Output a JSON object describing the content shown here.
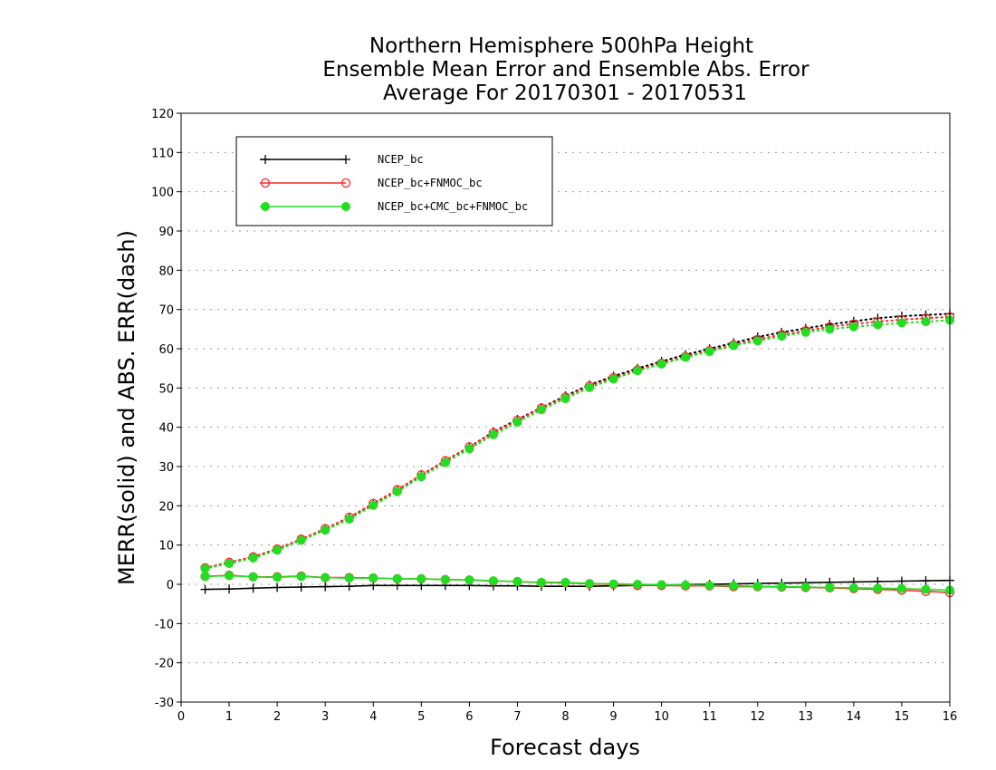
{
  "chart_data": {
    "type": "line",
    "title": [
      "Northern Hemisphere 500hPa Height",
      "Ensemble Mean Error and Ensemble Abs. Error",
      "Average For 20170301 - 20170531"
    ],
    "xlabel": "Forecast days",
    "ylabel": "MERR(solid) and ABS. ERR(dash)",
    "xlim": [
      0,
      16
    ],
    "ylim": [
      -30,
      120
    ],
    "xticks": [
      0,
      1,
      2,
      3,
      4,
      5,
      6,
      7,
      8,
      9,
      10,
      11,
      12,
      13,
      14,
      15,
      16
    ],
    "yticks": [
      -30,
      -20,
      -10,
      0,
      10,
      20,
      30,
      40,
      50,
      60,
      70,
      80,
      90,
      100,
      110,
      120
    ],
    "grid": "horizontal-dotted",
    "legend_placement": "top-left",
    "x": [
      0.5,
      1,
      1.5,
      2,
      2.5,
      3,
      3.5,
      4,
      4.5,
      5,
      5.5,
      6,
      6.5,
      7,
      7.5,
      8,
      8.5,
      9,
      9.5,
      10,
      10.5,
      11,
      11.5,
      12,
      12.5,
      13,
      13.5,
      14,
      14.5,
      15,
      15.5,
      16
    ],
    "series": [
      {
        "name": "NCEP_bc",
        "color": "#000000",
        "marker": "plus",
        "merr": [
          -1.3,
          -1.2,
          -1.0,
          -0.8,
          -0.7,
          -0.6,
          -0.5,
          -0.3,
          -0.3,
          -0.3,
          -0.3,
          -0.3,
          -0.4,
          -0.4,
          -0.5,
          -0.5,
          -0.5,
          -0.4,
          -0.3,
          -0.2,
          -0.1,
          0.0,
          0.1,
          0.2,
          0.3,
          0.4,
          0.5,
          0.6,
          0.7,
          0.8,
          0.9,
          1.0
        ],
        "abs_err": [
          4.0,
          5.5,
          7.0,
          9.0,
          11.5,
          14.0,
          17.0,
          20.5,
          24.0,
          27.8,
          31.5,
          35.0,
          38.8,
          42.0,
          45.0,
          48.0,
          50.8,
          53.0,
          55.0,
          56.8,
          58.5,
          60.0,
          61.5,
          63.0,
          64.2,
          65.2,
          66.2,
          67.0,
          67.8,
          68.3,
          68.6,
          68.9
        ]
      },
      {
        "name": "NCEP_bc+FNMOC_bc",
        "color": "#ff2a2a",
        "marker": "open-circle",
        "merr": [
          2.0,
          2.3,
          1.9,
          1.9,
          2.1,
          1.7,
          1.7,
          1.6,
          1.4,
          1.4,
          1.2,
          1.1,
          0.8,
          0.7,
          0.4,
          0.4,
          0.1,
          0.0,
          -0.3,
          -0.3,
          -0.4,
          -0.4,
          -0.6,
          -0.6,
          -0.7,
          -0.8,
          -0.9,
          -1.1,
          -1.3,
          -1.5,
          -1.8,
          -2.1
        ],
        "abs_err": [
          4.2,
          5.6,
          7.0,
          9.0,
          11.5,
          14.2,
          17.1,
          20.6,
          24.1,
          27.9,
          31.5,
          35.0,
          38.6,
          41.8,
          44.9,
          47.7,
          50.5,
          52.6,
          54.6,
          56.3,
          58.0,
          59.5,
          61.0,
          62.4,
          63.6,
          64.6,
          65.6,
          66.3,
          66.9,
          67.4,
          67.8,
          68.1
        ]
      },
      {
        "name": "NCEP_bc+CMC_bc+FNMOC_bc",
        "color": "#22dd22",
        "marker": "filled-circle",
        "merr": [
          2.0,
          2.2,
          1.9,
          1.8,
          2.0,
          1.7,
          1.6,
          1.6,
          1.4,
          1.4,
          1.2,
          1.1,
          0.9,
          0.7,
          0.5,
          0.5,
          0.2,
          0.1,
          0.0,
          -0.1,
          -0.2,
          -0.3,
          -0.4,
          -0.5,
          -0.6,
          -0.7,
          -0.8,
          -0.9,
          -1.0,
          -1.1,
          -1.3,
          -1.5
        ],
        "abs_err": [
          4.0,
          5.3,
          6.7,
          8.7,
          11.2,
          13.8,
          16.6,
          20.1,
          23.6,
          27.4,
          31.0,
          34.5,
          38.1,
          41.3,
          44.5,
          47.3,
          50.1,
          52.3,
          54.4,
          56.1,
          57.8,
          59.3,
          60.8,
          62.0,
          63.2,
          64.2,
          65.0,
          65.6,
          66.1,
          66.6,
          66.9,
          67.3
        ]
      }
    ]
  }
}
